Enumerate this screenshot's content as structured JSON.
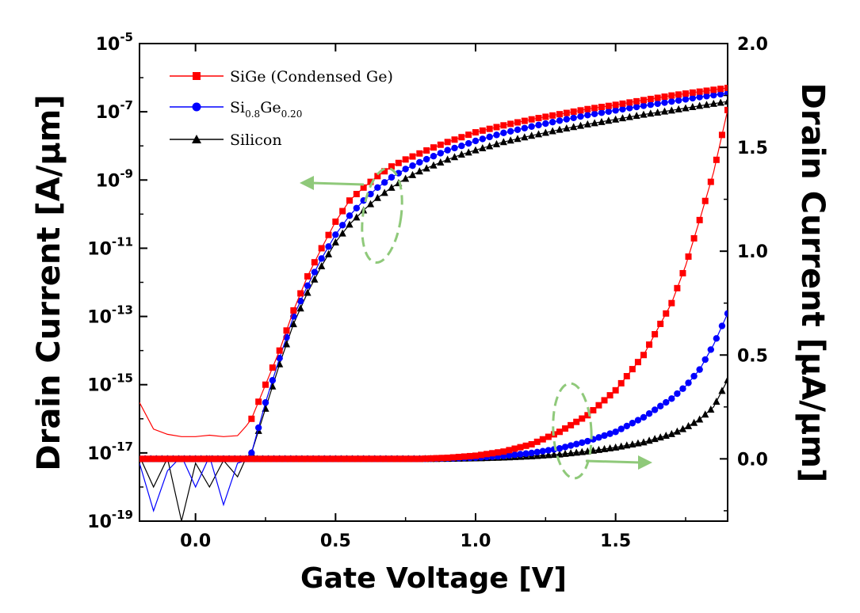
{
  "chart_data": {
    "type": "line",
    "x_axis": {
      "label": "Gate Voltage [V]",
      "range": [
        -0.2,
        1.9
      ],
      "ticks": [
        0.0,
        0.5,
        1.0,
        1.5
      ],
      "tick_labels": [
        "0.0",
        "0.5",
        "1.0",
        "1.5"
      ]
    },
    "y_axis_left": {
      "label": "Drain Current [A/μm]",
      "scale": "log",
      "range": [
        1e-19,
        1e-05
      ],
      "ticks": [
        {
          "base": "10",
          "exp": "-5",
          "value": 1e-05
        },
        {
          "base": "10",
          "exp": "-7",
          "value": 1e-07
        },
        {
          "base": "10",
          "exp": "-9",
          "value": 1e-09
        },
        {
          "base": "10",
          "exp": "-11",
          "value": 1e-11
        },
        {
          "base": "10",
          "exp": "-13",
          "value": 1e-13
        },
        {
          "base": "10",
          "exp": "-15",
          "value": 1e-15
        },
        {
          "base": "10",
          "exp": "-17",
          "value": 1e-17
        },
        {
          "base": "10",
          "exp": "-19",
          "value": 1e-19
        }
      ]
    },
    "y_axis_right": {
      "label": "Drain Current [μA/μm]",
      "scale": "linear",
      "range": [
        -0.3,
        2.0
      ],
      "ticks": [
        0.0,
        0.5,
        1.0,
        1.5,
        2.0
      ],
      "tick_labels": [
        "0.0",
        "0.5",
        "1.0",
        "1.5",
        "2.0"
      ]
    },
    "legend": {
      "position": "top-left",
      "entries": [
        {
          "text": "SiGe (Condensed Ge)",
          "color": "#ff0000",
          "marker": "square"
        },
        {
          "text": "Si",
          "sub1": "0.8",
          "mid": "Ge",
          "sub2": "0.20",
          "color": "#0000ff",
          "marker": "circle"
        },
        {
          "text": "Silicon",
          "color": "#000000",
          "marker": "triangle"
        }
      ]
    },
    "annotation_color": "#8fc97a",
    "series": [
      {
        "name": "SiGe (Condensed Ge)",
        "color": "#ff0000",
        "marker": "square",
        "log_axis": {
          "x": [
            -0.2,
            -0.15,
            -0.1,
            -0.05,
            0.0,
            0.05,
            0.1,
            0.15,
            0.18,
            0.2,
            0.25,
            0.3,
            0.35,
            0.4,
            0.45,
            0.5,
            0.55,
            0.6,
            0.65,
            0.7,
            0.75,
            0.8,
            0.85,
            0.9,
            0.95,
            1.0,
            1.1,
            1.2,
            1.3,
            1.4,
            1.5,
            1.6,
            1.7,
            1.8,
            1.9
          ],
          "y": [
            3e-16,
            5e-17,
            3.5e-17,
            3e-17,
            3e-17,
            3.3e-17,
            3e-17,
            3.2e-17,
            6e-17,
            1e-16,
            1e-15,
            1e-14,
            1.5e-13,
            1.5e-12,
            1e-11,
            6e-11,
            2.5e-10,
            6e-10,
            1.3e-09,
            2.5e-09,
            4e-09,
            6e-09,
            9e-09,
            1.3e-08,
            1.8e-08,
            2.5e-08,
            4e-08,
            6e-08,
            8.5e-08,
            1.2e-07,
            1.6e-07,
            2.2e-07,
            3e-07,
            3.9e-07,
            5e-07
          ]
        },
        "linear_axis": {
          "x": [
            0.8,
            0.9,
            1.0,
            1.1,
            1.2,
            1.3,
            1.4,
            1.5,
            1.6,
            1.7,
            1.75,
            1.8,
            1.85,
            1.9
          ],
          "y": [
            0.0,
            0.005,
            0.015,
            0.035,
            0.07,
            0.13,
            0.21,
            0.33,
            0.5,
            0.75,
            0.93,
            1.15,
            1.38,
            1.68
          ]
        }
      },
      {
        "name": "Si0.8Ge0.20",
        "color": "#0000ff",
        "marker": "circle",
        "log_axis": {
          "x": [
            -0.2,
            -0.15,
            -0.1,
            -0.05,
            0.0,
            0.05,
            0.1,
            0.15,
            0.18,
            0.2,
            0.25,
            0.3,
            0.35,
            0.4,
            0.45,
            0.5,
            0.55,
            0.6,
            0.65,
            0.7,
            0.75,
            0.8,
            0.85,
            0.9,
            0.95,
            1.0,
            1.1,
            1.2,
            1.3,
            1.4,
            1.5,
            1.6,
            1.7,
            1.8,
            1.9
          ],
          "y": [
            5e-18,
            2e-19,
            3e-18,
            8e-18,
            1e-18,
            8e-18,
            3e-19,
            5e-18,
            6e-18,
            1e-17,
            3e-16,
            6e-15,
            1e-13,
            8e-13,
            5e-12,
            2.5e-11,
            9e-11,
            2.5e-10,
            6e-10,
            1.2e-09,
            2.1e-09,
            3.3e-09,
            5e-09,
            7.5e-09,
            1e-08,
            1.4e-08,
            2.4e-08,
            3.7e-08,
            5.5e-08,
            8e-08,
            1.1e-07,
            1.5e-07,
            2e-07,
            2.7e-07,
            3.5e-07
          ]
        },
        "linear_axis": {
          "x": [
            0.8,
            0.9,
            1.0,
            1.1,
            1.2,
            1.3,
            1.4,
            1.5,
            1.6,
            1.7,
            1.75,
            1.8,
            1.85,
            1.9
          ],
          "y": [
            0.0,
            0.002,
            0.006,
            0.014,
            0.028,
            0.05,
            0.085,
            0.13,
            0.2,
            0.29,
            0.35,
            0.43,
            0.55,
            0.7
          ]
        }
      },
      {
        "name": "Silicon",
        "color": "#000000",
        "marker": "triangle",
        "log_axis": {
          "x": [
            -0.2,
            -0.15,
            -0.1,
            -0.05,
            0.0,
            0.05,
            0.1,
            0.15,
            0.18,
            0.2,
            0.25,
            0.3,
            0.35,
            0.4,
            0.45,
            0.5,
            0.55,
            0.6,
            0.65,
            0.7,
            0.75,
            0.8,
            0.85,
            0.9,
            0.95,
            1.0,
            1.1,
            1.2,
            1.3,
            1.4,
            1.5,
            1.6,
            1.7,
            1.8,
            1.9
          ],
          "y": [
            8e-18,
            1e-18,
            7e-18,
            1e-19,
            5e-18,
            1e-18,
            6e-18,
            2e-18,
            7e-18,
            1e-17,
            2e-16,
            4e-15,
            6e-14,
            5e-13,
            3e-12,
            1.5e-11,
            5e-11,
            1.3e-10,
            3e-10,
            6e-10,
            1.1e-09,
            1.8e-09,
            2.7e-09,
            4e-09,
            5.6e-09,
            7.5e-09,
            1.3e-08,
            2e-08,
            3e-08,
            4.3e-08,
            6e-08,
            8.3e-08,
            1.1e-07,
            1.5e-07,
            2e-07
          ]
        },
        "linear_axis": {
          "x": [
            0.8,
            0.9,
            1.0,
            1.1,
            1.2,
            1.3,
            1.4,
            1.5,
            1.6,
            1.7,
            1.75,
            1.8,
            1.85,
            1.9
          ],
          "y": [
            0.0,
            0.001,
            0.003,
            0.007,
            0.013,
            0.022,
            0.036,
            0.055,
            0.08,
            0.12,
            0.15,
            0.19,
            0.25,
            0.38
          ]
        }
      }
    ]
  }
}
